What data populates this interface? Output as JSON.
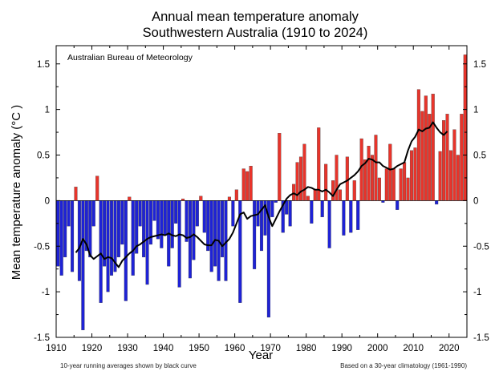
{
  "chart_data": {
    "type": "bar",
    "title": "Annual mean temperature anomaly",
    "subtitle": "Southwestern Australia (1910 to 2024)",
    "source": "Australian Bureau of Meteorology",
    "xlabel": "Year",
    "ylabel": "Mean temperature anomaly (°C )",
    "note_left": "10-year running averages shown by black curve",
    "note_right": "Based on a 30-year climatology (1961-1990)",
    "xlim": [
      1910,
      2025
    ],
    "ylim": [
      -1.5,
      1.7
    ],
    "x_ticks": [
      1910,
      1920,
      1930,
      1940,
      1950,
      1960,
      1970,
      1980,
      1990,
      2000,
      2010,
      2020
    ],
    "x_tick_labels": [
      "1910",
      "1920",
      "1930",
      "1940",
      "1950",
      "1960",
      "1970",
      "1980",
      "1990",
      "2000",
      "2010",
      "2020"
    ],
    "y_ticks": [
      -1.5,
      -1,
      -0.5,
      0,
      0.5,
      1,
      1.5
    ],
    "y_tick_labels": [
      "-1.5",
      "-1",
      "-0.5",
      "0",
      "0.5",
      "1",
      "1.5"
    ],
    "colors": {
      "positive": "#e8342b",
      "negative": "#1e22d6",
      "running_mean": "#000000",
      "bar_edge": "#333333"
    },
    "years": [
      1910,
      1911,
      1912,
      1913,
      1914,
      1915,
      1916,
      1917,
      1918,
      1919,
      1920,
      1921,
      1922,
      1923,
      1924,
      1925,
      1926,
      1927,
      1928,
      1929,
      1930,
      1931,
      1932,
      1933,
      1934,
      1935,
      1936,
      1937,
      1938,
      1939,
      1940,
      1941,
      1942,
      1943,
      1944,
      1945,
      1946,
      1947,
      1948,
      1949,
      1950,
      1951,
      1952,
      1953,
      1954,
      1955,
      1956,
      1957,
      1958,
      1959,
      1960,
      1961,
      1962,
      1963,
      1964,
      1965,
      1966,
      1967,
      1968,
      1969,
      1970,
      1971,
      1972,
      1973,
      1974,
      1975,
      1976,
      1977,
      1978,
      1979,
      1980,
      1981,
      1982,
      1983,
      1984,
      1985,
      1986,
      1987,
      1988,
      1989,
      1990,
      1991,
      1992,
      1993,
      1994,
      1995,
      1996,
      1997,
      1998,
      1999,
      2000,
      2001,
      2002,
      2003,
      2004,
      2005,
      2006,
      2007,
      2008,
      2009,
      2010,
      2011,
      2012,
      2013,
      2014,
      2015,
      2016,
      2017,
      2018,
      2019,
      2020,
      2021,
      2022,
      2023,
      2024
    ],
    "values": [
      -0.72,
      -0.82,
      -0.62,
      -0.28,
      -0.78,
      0.15,
      -0.88,
      -1.42,
      -0.55,
      -0.62,
      -0.28,
      0.27,
      -1.12,
      -0.72,
      -1.0,
      -0.82,
      -0.78,
      -0.62,
      -0.48,
      -1.1,
      0.04,
      -0.82,
      -0.58,
      -0.28,
      -0.62,
      -0.92,
      -0.48,
      -0.22,
      -0.42,
      -0.52,
      -0.38,
      -0.72,
      -0.52,
      -0.25,
      -0.95,
      0.02,
      -0.45,
      -0.85,
      -0.65,
      -0.28,
      0.05,
      -0.35,
      -0.55,
      -0.78,
      -0.72,
      -0.88,
      -0.62,
      -0.88,
      0.04,
      -0.28,
      0.12,
      -1.12,
      0.35,
      0.32,
      0.38,
      -0.75,
      -0.28,
      -0.55,
      -0.38,
      -1.28,
      -0.18,
      -0.02,
      0.74,
      -0.35,
      -0.15,
      -0.28,
      0.18,
      0.42,
      0.48,
      0.62,
      0.05,
      -0.25,
      0.12,
      0.8,
      -0.18,
      0.4,
      -0.52,
      0.22,
      0.5,
      0.12,
      -0.38,
      0.48,
      -0.35,
      0.22,
      -0.32,
      0.68,
      0.45,
      0.6,
      0.5,
      0.72,
      0.25,
      -0.02,
      0.35,
      0.62,
      0.35,
      -0.1,
      0.35,
      0.42,
      0.25,
      0.55,
      0.58,
      1.22,
      0.98,
      1.15,
      0.95,
      1.17,
      -0.04,
      0.54,
      0.88,
      0.95,
      0.55,
      0.78,
      0.5,
      0.95,
      1.6
    ],
    "running_mean": {
      "x": [
        1915,
        1916,
        1917,
        1918,
        1919,
        1920,
        1921,
        1922,
        1923,
        1924,
        1925,
        1926,
        1927,
        1928,
        1929,
        1930,
        1931,
        1932,
        1933,
        1934,
        1935,
        1936,
        1937,
        1938,
        1939,
        1940,
        1941,
        1942,
        1943,
        1944,
        1945,
        1946,
        1947,
        1948,
        1949,
        1950,
        1951,
        1952,
        1953,
        1954,
        1955,
        1956,
        1957,
        1958,
        1959,
        1960,
        1961,
        1962,
        1963,
        1964,
        1965,
        1966,
        1967,
        1968,
        1969,
        1970,
        1971,
        1972,
        1973,
        1974,
        1975,
        1976,
        1977,
        1978,
        1979,
        1980,
        1981,
        1982,
        1983,
        1984,
        1985,
        1986,
        1987,
        1988,
        1989,
        1990,
        1991,
        1992,
        1993,
        1994,
        1995,
        1996,
        1997,
        1998,
        1999,
        2000,
        2001,
        2002,
        2003,
        2004,
        2005,
        2006,
        2007,
        2008,
        2009,
        2010,
        2011,
        2012,
        2013,
        2014,
        2015,
        2016,
        2017,
        2018,
        2019
      ],
      "y": [
        -0.57,
        -0.52,
        -0.42,
        -0.48,
        -0.6,
        -0.64,
        -0.61,
        -0.58,
        -0.64,
        -0.62,
        -0.63,
        -0.68,
        -0.73,
        -0.66,
        -0.62,
        -0.58,
        -0.55,
        -0.5,
        -0.48,
        -0.45,
        -0.42,
        -0.4,
        -0.39,
        -0.38,
        -0.37,
        -0.38,
        -0.36,
        -0.38,
        -0.39,
        -0.37,
        -0.38,
        -0.41,
        -0.4,
        -0.37,
        -0.4,
        -0.44,
        -0.48,
        -0.49,
        -0.49,
        -0.43,
        -0.44,
        -0.5,
        -0.46,
        -0.42,
        -0.35,
        -0.25,
        -0.15,
        -0.13,
        -0.2,
        -0.17,
        -0.16,
        -0.15,
        -0.1,
        -0.05,
        -0.18,
        -0.28,
        -0.2,
        -0.12,
        -0.05,
        0.02,
        0.06,
        0.08,
        0.06,
        0.1,
        0.12,
        0.15,
        0.14,
        0.12,
        0.12,
        0.1,
        0.12,
        0.09,
        0.05,
        0.12,
        0.18,
        0.2,
        0.22,
        0.25,
        0.28,
        0.32,
        0.38,
        0.41,
        0.46,
        0.45,
        0.42,
        0.42,
        0.38,
        0.36,
        0.34,
        0.35,
        0.38,
        0.4,
        0.42,
        0.55,
        0.65,
        0.7,
        0.78,
        0.76,
        0.79,
        0.8,
        0.86,
        0.8,
        0.75,
        0.72,
        0.76
      ]
    }
  }
}
